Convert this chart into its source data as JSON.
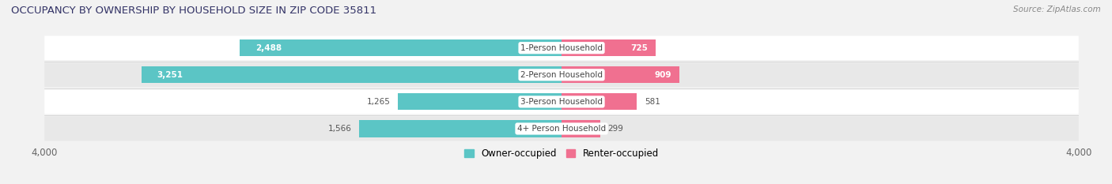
{
  "title": "OCCUPANCY BY OWNERSHIP BY HOUSEHOLD SIZE IN ZIP CODE 35811",
  "source": "Source: ZipAtlas.com",
  "categories": [
    "1-Person Household",
    "2-Person Household",
    "3-Person Household",
    "4+ Person Household"
  ],
  "owner_values": [
    2488,
    3251,
    1265,
    1566
  ],
  "renter_values": [
    725,
    909,
    581,
    299
  ],
  "owner_color": "#5BC5C5",
  "renter_color": "#F07090",
  "background_color": "#F2F2F2",
  "row_bg_color": "#FFFFFF",
  "row_bg_alt_color": "#EBEBEB",
  "axis_max": 4000,
  "bar_height": 0.62,
  "label_fontsize": 7.5,
  "title_fontsize": 9.5,
  "tick_fontsize": 8.5,
  "legend_fontsize": 8.5,
  "figsize": [
    14.06,
    2.33
  ],
  "dpi": 100
}
